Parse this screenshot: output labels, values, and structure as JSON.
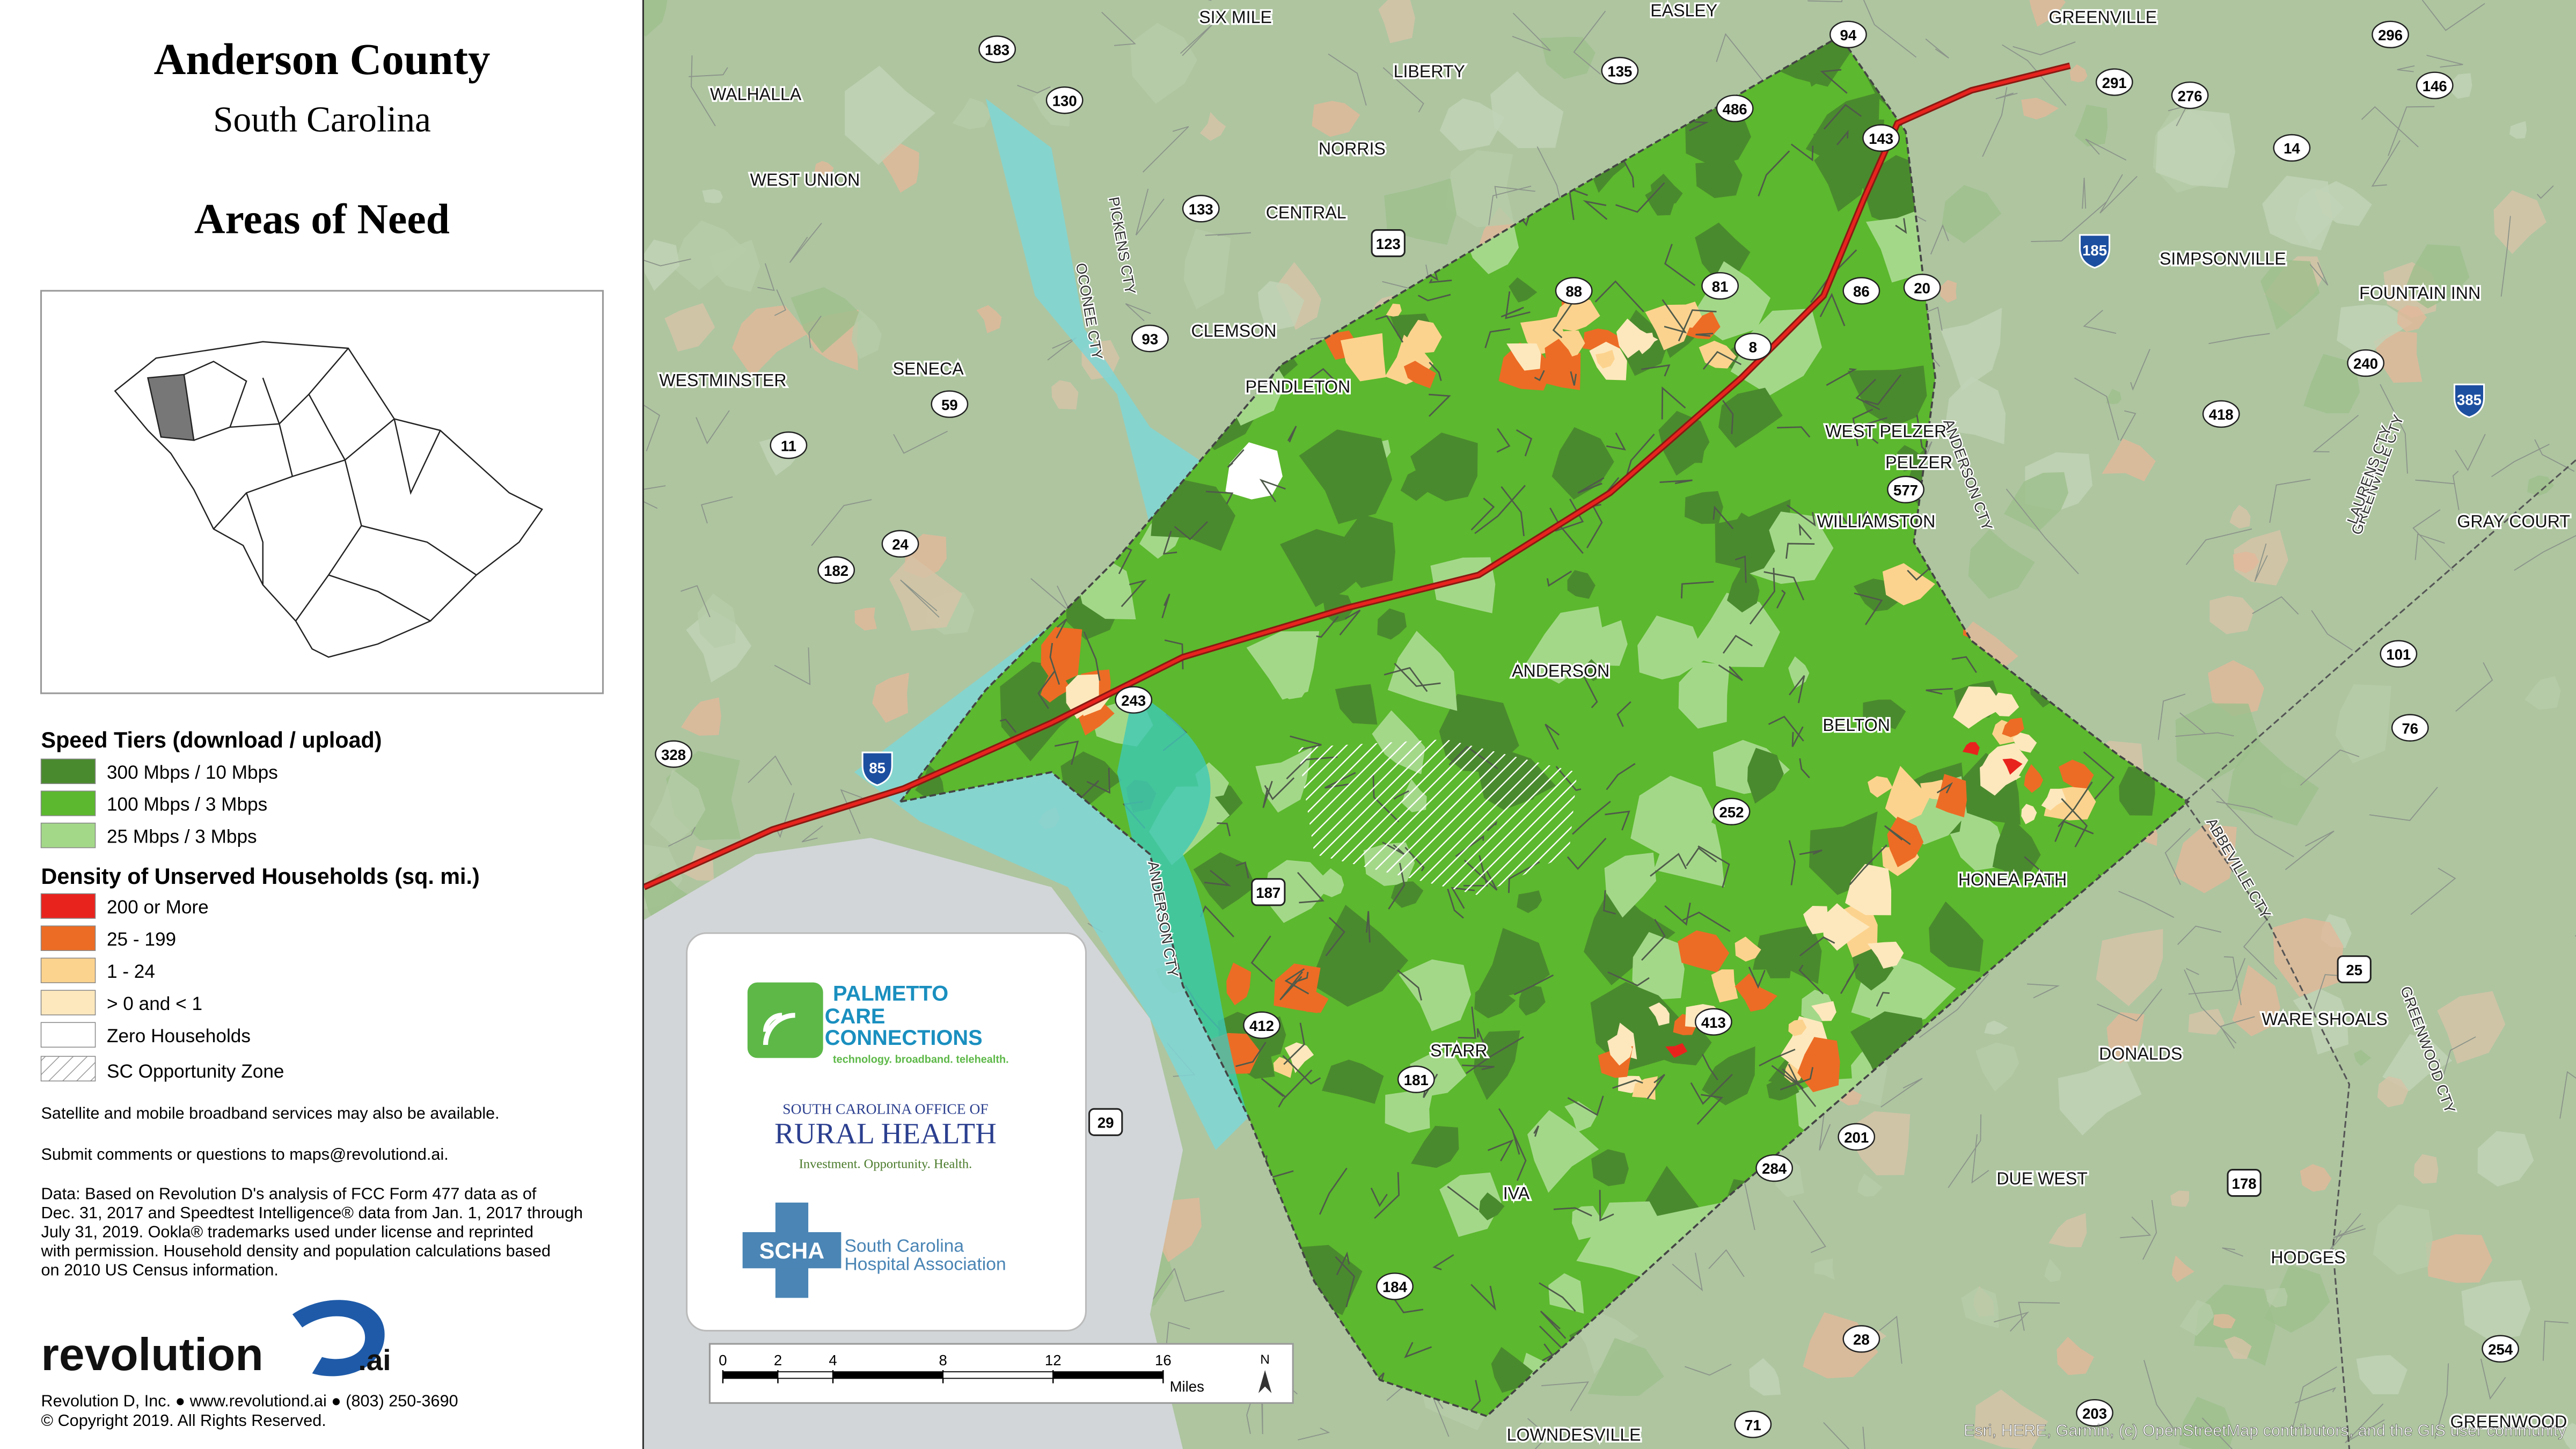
{
  "panel": {
    "title": "Anderson County",
    "subtitle": "South Carolina",
    "heading": "Areas of Need"
  },
  "legend": {
    "speed_title": "Speed Tiers (download / upload)",
    "speed_tiers": [
      {
        "label": "300 Mbps / 10 Mbps",
        "color": "#4a8a2e"
      },
      {
        "label": "100 Mbps / 3 Mbps",
        "color": "#5cb82e"
      },
      {
        "label": "25 Mbps / 3 Mbps",
        "color": "#a3d889"
      }
    ],
    "density_title": "Density of Unserved Households (sq. mi.)",
    "density": [
      {
        "label": "200 or More",
        "color": "#e8231e"
      },
      {
        "label": "25 - 199",
        "color": "#ec6c25"
      },
      {
        "label": "1 - 24",
        "color": "#fcd38e"
      },
      {
        "label": "> 0 and < 1",
        "color": "#fde8bd"
      },
      {
        "label": "Zero Households",
        "color": "#ffffff"
      }
    ],
    "opportunity": "SC Opportunity Zone"
  },
  "notes": [
    "Satellite and mobile broadband services may also be available.",
    "Submit comments or questions to maps@revolutiond.ai."
  ],
  "data_note": [
    "Data: Based on Revolution D's analysis of FCC Form 477 data as of",
    "Dec. 31, 2017 and Speedtest Intelligence® data from Jan. 1, 2017 through",
    "July 31, 2019. Ookla® trademarks used under license and reprinted",
    "with permission.  Household density and population calculations based",
    "on 2010 US Census information."
  ],
  "logo": {
    "word": "revolution",
    "suffix": ".ai"
  },
  "footer": [
    "Revolution D, Inc. ● www.revolutiond.ai ● (803) 250-3690",
    "© Copyright 2019. All Rights Reserved."
  ],
  "partners": {
    "pcc_name": [
      "PALMETTO",
      "CARE",
      "CONNECTIONS"
    ],
    "pcc_tag": "technology. broadband. telehealth.",
    "orh_top": "SOUTH CAROLINA OFFICE OF",
    "orh_name": "RURAL HEALTH",
    "orh_tag": "Investment. Opportunity. Health.",
    "scha": "SCHA",
    "scha_name": [
      "South Carolina",
      "Hospital Association"
    ]
  },
  "scale": {
    "ticks": [
      0,
      2,
      4,
      8,
      12,
      16
    ],
    "unit": "Miles",
    "north": "N"
  },
  "attribution": "Esri, HERE, Garmin, (c) OpenStreetMap contributors, and the GIS user community",
  "places": [
    "SIX MILE",
    "EASLEY",
    "GREENVILLE",
    "LIBERTY",
    "WALHALLA",
    "NORRIS",
    "WEST UNION",
    "CENTRAL",
    "SIMPSONVILLE",
    "FOUNTAIN INN",
    "CLEMSON",
    "SENECA",
    "WESTMINSTER",
    "PENDLETON",
    "WEST PELZER",
    "PELZER",
    "WILLIAMSTON",
    "GRAY COURT",
    "ANDERSON",
    "BELTON",
    "HONEA PATH",
    "DONALDS",
    "WARE SHOALS",
    "STARR",
    "DUE WEST",
    "IVA",
    "HODGES",
    "GREENWOOD",
    "LOWNDESVILLE"
  ],
  "county_labels": [
    "PICKENS CTY",
    "OCONEE CTY",
    "ANDERSON CTY",
    "GREENVILLE CTY",
    "LAURENS CTY",
    "ABBEVILLE CTY",
    "GREENWOOD CTY",
    "ANDERSON CTY"
  ],
  "routes": [
    "94",
    "296",
    "183",
    "135",
    "291",
    "130",
    "276",
    "146",
    "486",
    "143",
    "14",
    "133",
    "123",
    "185",
    "88",
    "81",
    "86",
    "20",
    "93",
    "8",
    "240",
    "59",
    "418",
    "385",
    "11",
    "577",
    "24",
    "182",
    "101",
    "243",
    "76",
    "85",
    "328",
    "252",
    "187",
    "25",
    "412",
    "413",
    "181",
    "29",
    "201",
    "178",
    "284",
    "184",
    "28",
    "254",
    "203",
    "71"
  ]
}
